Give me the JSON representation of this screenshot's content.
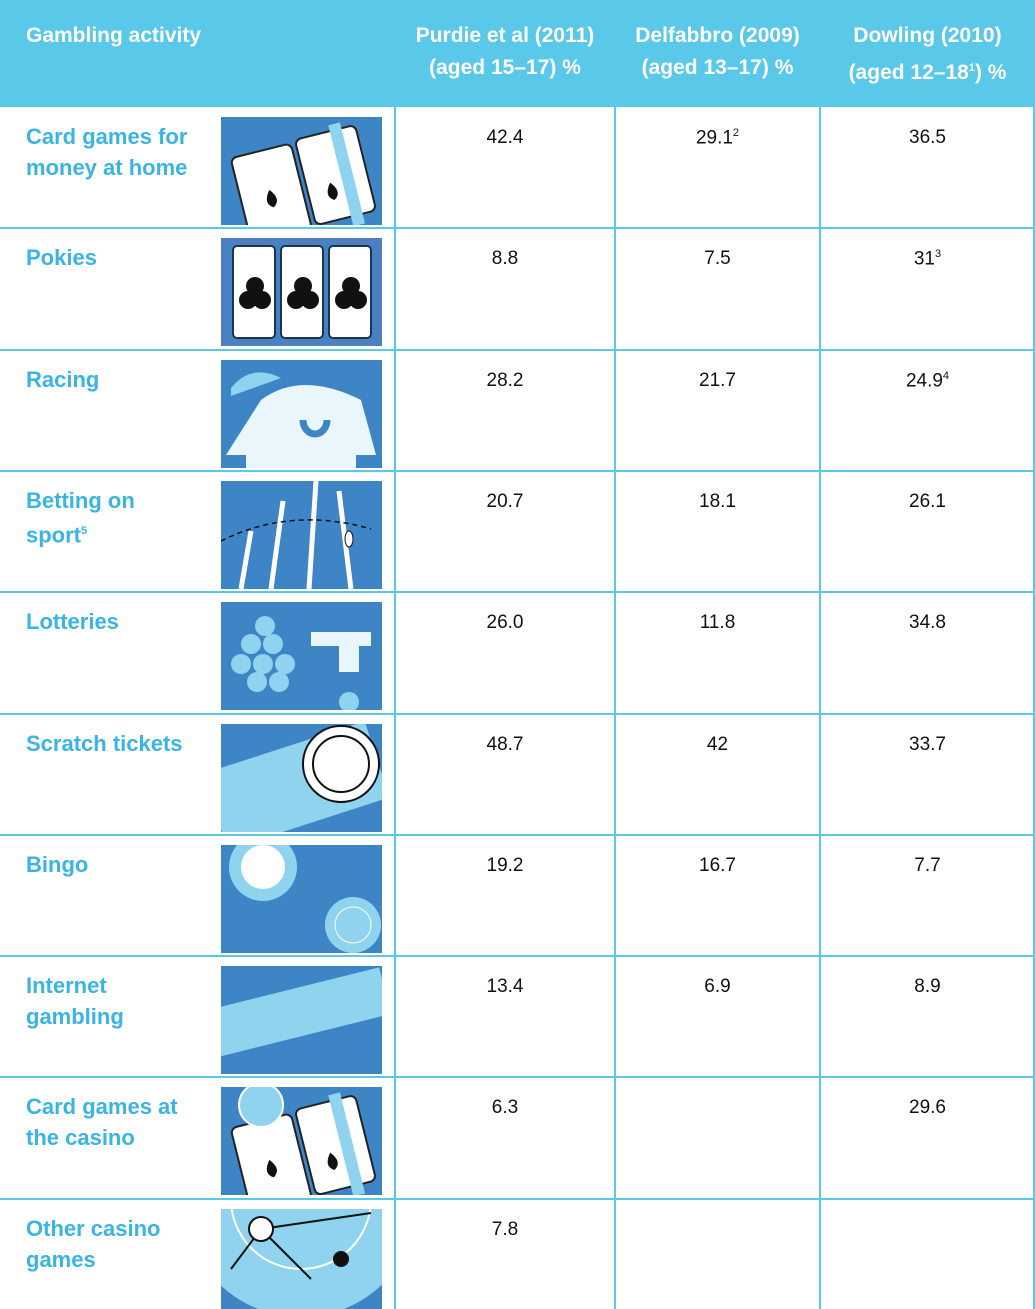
{
  "table": {
    "header": [
      {
        "line1": "Gambling activity"
      },
      {
        "line1": "Purdie et al (2011)",
        "line2": "(aged 15–17) %"
      },
      {
        "line1": "Delfabbro (2009)",
        "line2": "(aged 13–17) %"
      },
      {
        "line1": "Dowling (2010)",
        "line2": "(aged 12–18",
        "sup": "1",
        "after": ") %"
      }
    ],
    "rows": [
      {
        "activity": {
          "text": "Card games for money at home"
        },
        "values": [
          {
            "text": "42.4"
          },
          {
            "text": "29.1",
            "sup": "2"
          },
          {
            "text": "36.5"
          }
        ]
      },
      {
        "activity": {
          "text": "Pokies"
        },
        "values": [
          {
            "text": "8.8"
          },
          {
            "text": "7.5"
          },
          {
            "text": "31",
            "sup": "3"
          }
        ]
      },
      {
        "activity": {
          "text": "Racing"
        },
        "values": [
          {
            "text": "28.2"
          },
          {
            "text": "21.7"
          },
          {
            "text": "24.9",
            "sup": "4"
          }
        ]
      },
      {
        "activity": {
          "text": "Betting on sport",
          "sup": "5"
        },
        "values": [
          {
            "text": "20.7"
          },
          {
            "text": "18.1"
          },
          {
            "text": "26.1"
          }
        ]
      },
      {
        "activity": {
          "text": "Lotteries"
        },
        "values": [
          {
            "text": "26.0"
          },
          {
            "text": "11.8"
          },
          {
            "text": "34.8"
          }
        ]
      },
      {
        "activity": {
          "text": "Scratch tickets"
        },
        "values": [
          {
            "text": "48.7"
          },
          {
            "text": "42"
          },
          {
            "text": "33.7"
          }
        ]
      },
      {
        "activity": {
          "text": "Bingo"
        },
        "values": [
          {
            "text": "19.2"
          },
          {
            "text": "16.7"
          },
          {
            "text": "7.7"
          }
        ]
      },
      {
        "activity": {
          "text": "Internet gambling"
        },
        "values": [
          {
            "text": "13.4"
          },
          {
            "text": "6.9"
          },
          {
            "text": "8.9"
          }
        ]
      },
      {
        "activity": {
          "text": "Card games at the casino"
        },
        "values": [
          {
            "text": "6.3"
          },
          null,
          {
            "text": "29.6"
          }
        ]
      },
      {
        "activity": {
          "text": "Other casino games"
        },
        "values": [
          {
            "text": "7.8"
          },
          null,
          null
        ]
      }
    ]
  }
}
